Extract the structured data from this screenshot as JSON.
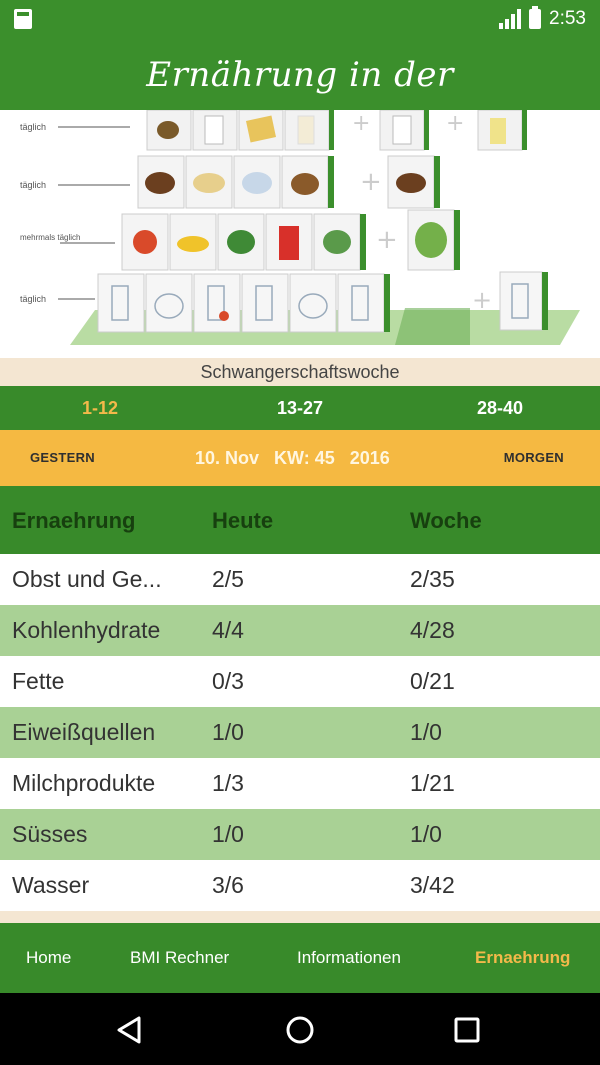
{
  "status_bar": {
    "time": "2:53",
    "network": "LTE"
  },
  "app": {
    "title": "Ernährung in der Schwangerschaft"
  },
  "illustration": {
    "row_labels": [
      "täglich",
      "täglich",
      "mehrmals täglich",
      "täglich"
    ]
  },
  "week_section": {
    "label": "Schwangerschaftswoche",
    "tabs": [
      {
        "label": "1-12",
        "active": true
      },
      {
        "label": "13-27",
        "active": false
      },
      {
        "label": "28-40",
        "active": false
      }
    ]
  },
  "date_bar": {
    "prev_label": "GESTERN",
    "date": "10. Nov",
    "kw": "KW: 45",
    "year": "2016",
    "next_label": "MORGEN"
  },
  "table": {
    "headers": [
      "Ernaehrung",
      "Heute",
      "Woche"
    ],
    "rows": [
      {
        "name": "Obst und Ge...",
        "today": "2/5",
        "week": "2/35"
      },
      {
        "name": "Kohlenhydrate",
        "today": "4/4",
        "week": "4/28"
      },
      {
        "name": "Fette",
        "today": "0/3",
        "week": "0/21"
      },
      {
        "name": "Eiweißquellen",
        "today": "1/0",
        "week": "1/0"
      },
      {
        "name": "Milchprodukte",
        "today": "1/3",
        "week": "1/21"
      },
      {
        "name": "Süsses",
        "today": "1/0",
        "week": "1/0"
      },
      {
        "name": "Wasser",
        "today": "3/6",
        "week": "3/42"
      }
    ]
  },
  "bottom_nav": {
    "items": [
      {
        "label": "Home",
        "active": false
      },
      {
        "label": "BMI Rechner",
        "active": false
      },
      {
        "label": "Informationen",
        "active": false
      },
      {
        "label": "Ernaehrung",
        "active": true
      }
    ]
  },
  "colors": {
    "primary_green": "#388a2a",
    "accent_orange": "#f5b942",
    "row_alt": "#a9d195",
    "active_text": "#f3b94a"
  },
  "icons": {
    "back": "back-triangle-icon",
    "home": "home-circle-icon",
    "recents": "recents-square-icon"
  }
}
